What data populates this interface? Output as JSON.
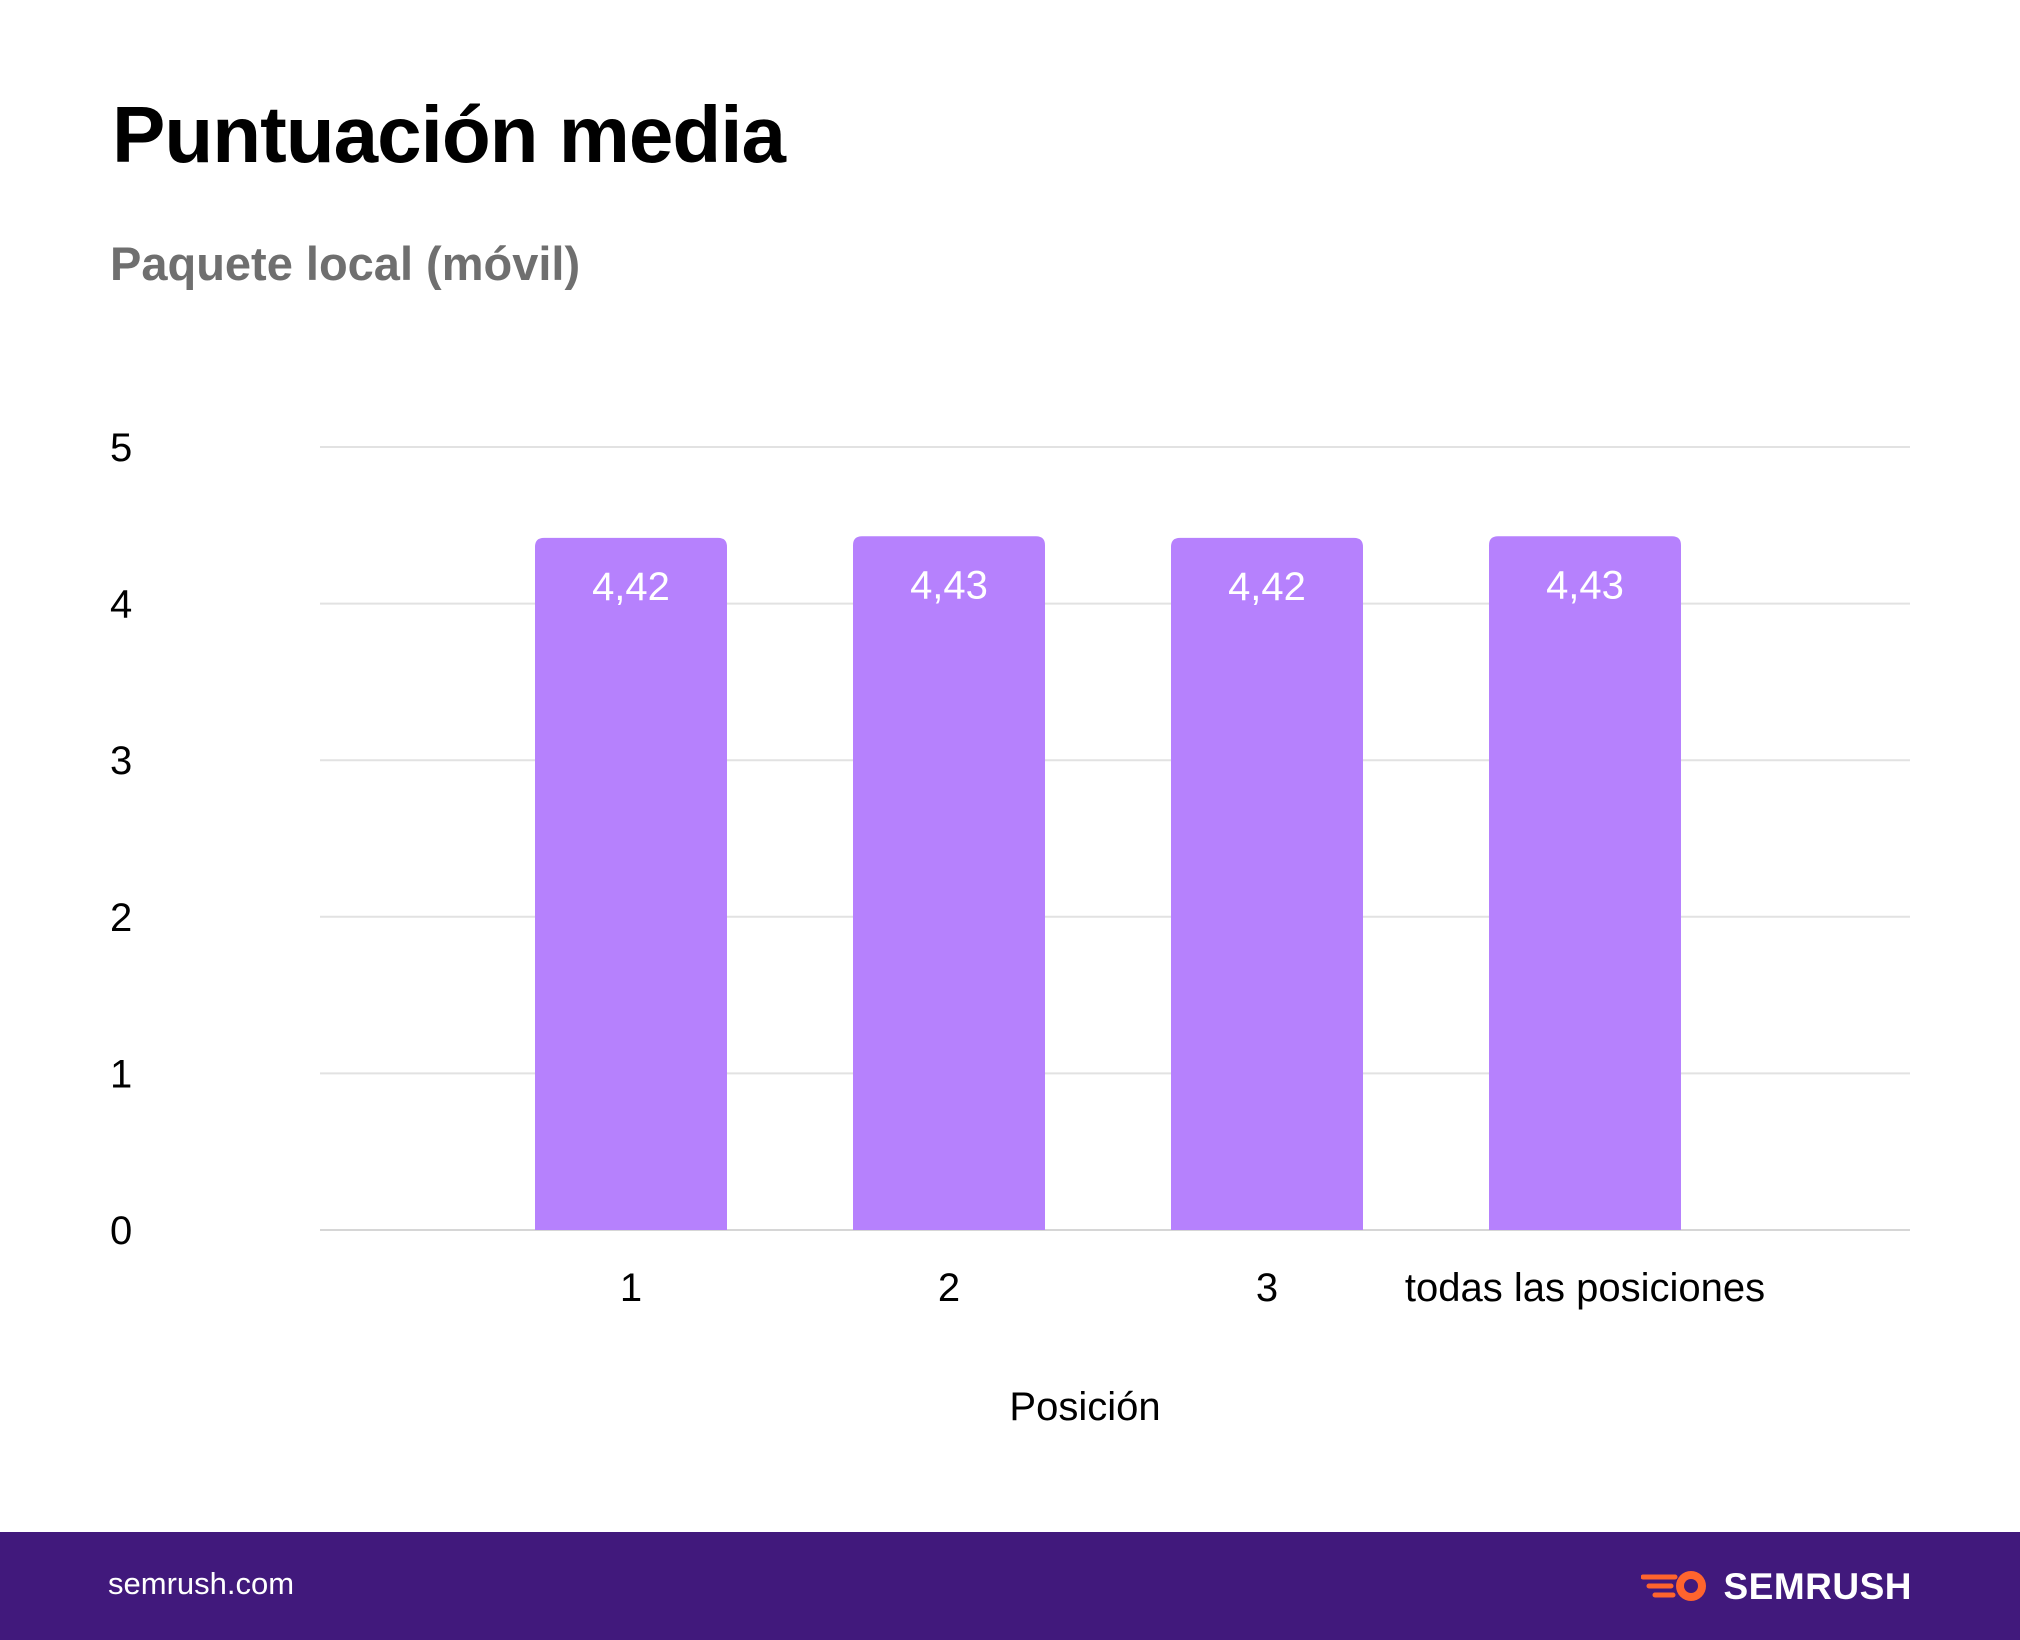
{
  "header": {
    "title": "Puntuación media",
    "subtitle": "Paquete local (móvil)"
  },
  "chart_data": {
    "type": "bar",
    "categories": [
      "1",
      "2",
      "3",
      "todas las posiciones"
    ],
    "values": [
      4.42,
      4.43,
      4.42,
      4.43
    ],
    "value_labels": [
      "4,42",
      "4,43",
      "4,42",
      "4,43"
    ],
    "xlabel": "Posición",
    "ylabel": "",
    "ylim": [
      0,
      5
    ],
    "yticks": [
      "0",
      "1",
      "2",
      "3",
      "4",
      "5"
    ],
    "grid": true,
    "bar_color": "#b681fd",
    "label_color": "#ffffff"
  },
  "footer": {
    "url": "semrush.com",
    "brand": "SEMRUSH",
    "background": "#41197c",
    "brand_accent": "#ff642d"
  }
}
